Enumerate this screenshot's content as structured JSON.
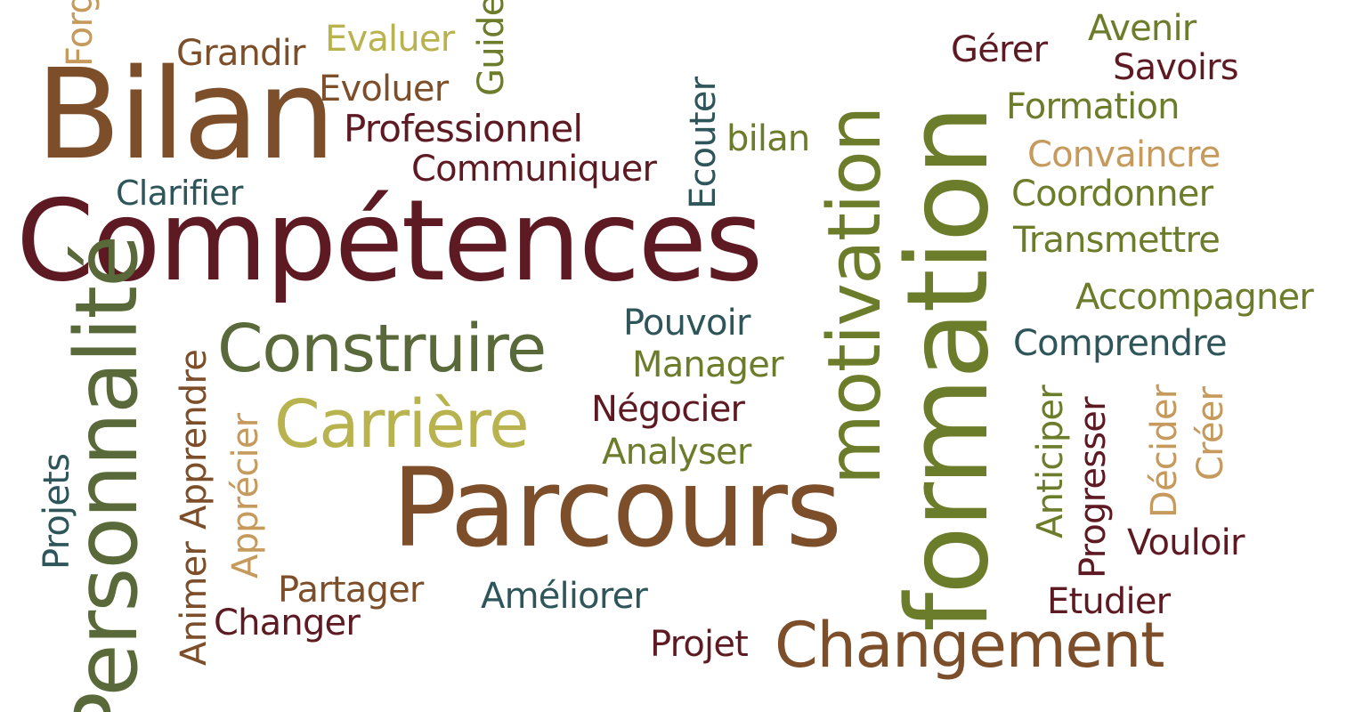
{
  "colors": {
    "maroon": "#5e1a22",
    "olive": "#6b7c2a",
    "teal": "#2e5559",
    "brown": "#7d4e2a",
    "tan": "#c59a5c",
    "khaki": "#b8b34e",
    "dark_olive": "#59693a"
  },
  "words": {
    "bilan": "Bilan",
    "competences": "Compétences",
    "construire": "Construire",
    "carriere": "Carrière",
    "parcours": "Parcours",
    "changement": "Changement",
    "formation_vertical": "formation",
    "motivation": "motivation",
    "personnalite": "Personnalité",
    "grandir": "Grandir",
    "evaluer": "Evaluer",
    "guide": "Guide",
    "forger": "Forger",
    "evoluer": "Evoluer",
    "professionnel": "Professionnel",
    "communiquer": "Communiquer",
    "clarifier": "Clarifier",
    "ecouter": "Ecouter",
    "bilan_small": "bilan",
    "gerer": "Gérer",
    "avenir": "Avenir",
    "savoirs": "Savoirs",
    "formation_small": "Formation",
    "convaincre": "Convaincre",
    "coordonner": "Coordonner",
    "transmettre": "Transmettre",
    "accompagner": "Accompagner",
    "comprendre": "Comprendre",
    "pouvoir": "Pouvoir",
    "manager": "Manager",
    "negocier": "Négocier",
    "analyser": "Analyser",
    "projets": "Projets",
    "apprendre": "Apprendre",
    "apprecier": "Apprécier",
    "animer": "Animer",
    "partager": "Partager",
    "changer": "Changer",
    "ameliorer": "Améliorer",
    "projet": "Projet",
    "anticiper": "Anticiper",
    "progresser": "Progresser",
    "decider": "Décider",
    "creer": "Créer",
    "vouloir": "Vouloir",
    "etudier": "Etudier"
  }
}
